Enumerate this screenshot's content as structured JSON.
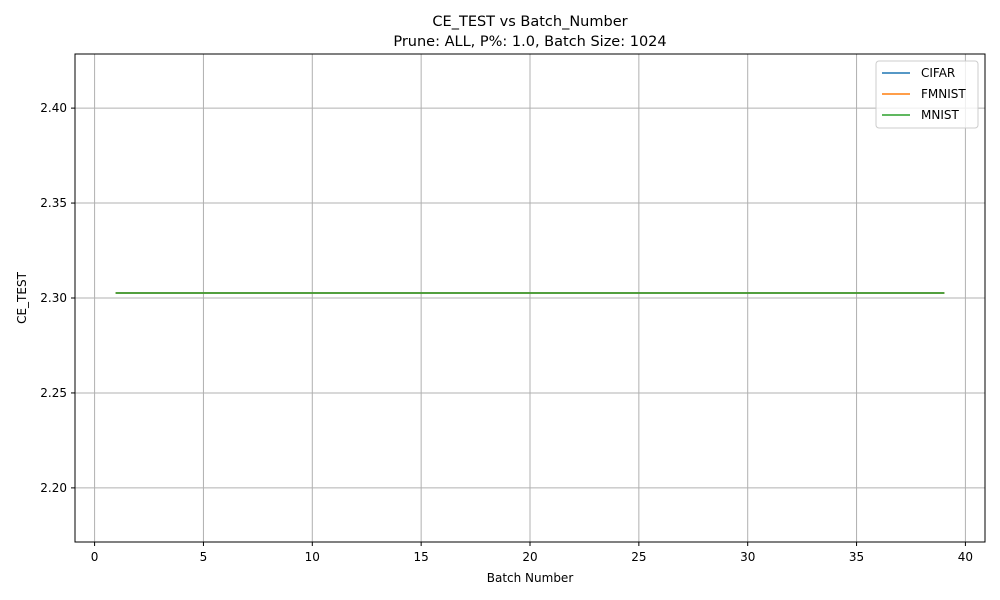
{
  "chart_data": {
    "type": "line",
    "title": "CE_TEST vs Batch_Number",
    "subtitle": "Prune: ALL, P%: 1.0, Batch Size: 1024",
    "xlabel": "Batch Number",
    "ylabel": "CE_TEST",
    "xlim": [
      -0.9,
      40.9
    ],
    "ylim": [
      2.1715,
      2.4285
    ],
    "xticks": [
      0,
      5,
      10,
      15,
      20,
      25,
      30,
      35,
      40
    ],
    "yticks": [
      2.2,
      2.25,
      2.3,
      2.35,
      2.4
    ],
    "xtick_labels": [
      "0",
      "5",
      "10",
      "15",
      "20",
      "25",
      "30",
      "35",
      "40"
    ],
    "ytick_labels": [
      "2.20",
      "2.25",
      "2.30",
      "2.35",
      "2.40"
    ],
    "grid": true,
    "legend_position": "top-right",
    "x": [
      1,
      2,
      3,
      4,
      5,
      6,
      7,
      8,
      9,
      10,
      11,
      12,
      13,
      14,
      15,
      16,
      17,
      18,
      19,
      20,
      21,
      22,
      23,
      24,
      25,
      26,
      27,
      28,
      29,
      30,
      31,
      32,
      33,
      34,
      35,
      36,
      37,
      38,
      39
    ],
    "series": [
      {
        "name": "CIFAR",
        "color": "#1f77b4",
        "values": [
          2.3026,
          2.3026,
          2.3026,
          2.3026,
          2.3026,
          2.3026,
          2.3026,
          2.3026,
          2.3026,
          2.3026,
          2.3026,
          2.3026,
          2.3026,
          2.3026,
          2.3026,
          2.3026,
          2.3026,
          2.3026,
          2.3026,
          2.3026,
          2.3026,
          2.3026,
          2.3026,
          2.3026,
          2.3026,
          2.3026,
          2.3026,
          2.3026,
          2.3026,
          2.3026,
          2.3026,
          2.3026,
          2.3026,
          2.3026,
          2.3026,
          2.3026,
          2.3026,
          2.3026,
          2.3026
        ]
      },
      {
        "name": "FMNIST",
        "color": "#ff7f0e",
        "values": [
          2.3026,
          2.3026,
          2.3026,
          2.3026,
          2.3026,
          2.3026,
          2.3026,
          2.3026,
          2.3026,
          2.3026,
          2.3026,
          2.3026,
          2.3026,
          2.3026,
          2.3026,
          2.3026,
          2.3026,
          2.3026,
          2.3026,
          2.3026,
          2.3026,
          2.3026,
          2.3026,
          2.3026,
          2.3026,
          2.3026,
          2.3026,
          2.3026,
          2.3026,
          2.3026,
          2.3026,
          2.3026,
          2.3026,
          2.3026,
          2.3026,
          2.3026,
          2.3026,
          2.3026,
          2.3026
        ]
      },
      {
        "name": "MNIST",
        "color": "#2ca02c",
        "values": [
          2.3026,
          2.3026,
          2.3026,
          2.3026,
          2.3026,
          2.3026,
          2.3026,
          2.3026,
          2.3026,
          2.3026,
          2.3026,
          2.3026,
          2.3026,
          2.3026,
          2.3026,
          2.3026,
          2.3026,
          2.3026,
          2.3026,
          2.3026,
          2.3026,
          2.3026,
          2.3026,
          2.3026,
          2.3026,
          2.3026,
          2.3026,
          2.3026,
          2.3026,
          2.3026,
          2.3026,
          2.3026,
          2.3026,
          2.3026,
          2.3026,
          2.3026,
          2.3026,
          2.3026,
          2.3026
        ]
      }
    ],
    "colors": {
      "grid": "#b0b0b0",
      "axes": "#000000",
      "legend_border": "#cccccc"
    }
  }
}
